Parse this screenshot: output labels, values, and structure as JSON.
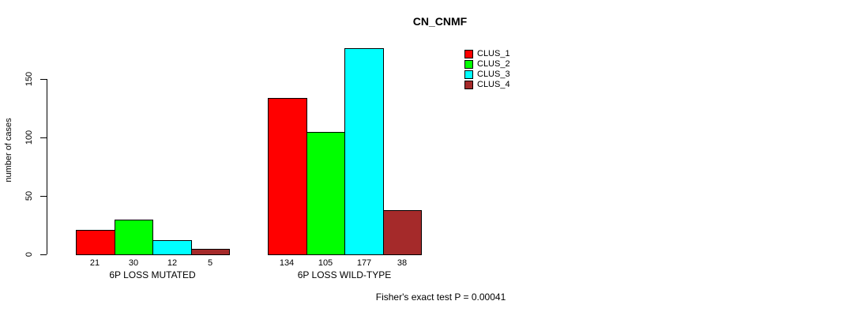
{
  "chart_data": {
    "type": "bar",
    "title": "CN_CNMF",
    "ylabel": "number of cases",
    "xlabel": "",
    "categories": [
      "6P LOSS MUTATED",
      "6P LOSS WILD-TYPE"
    ],
    "series": [
      {
        "name": "CLUS_1",
        "color": "#FF0000",
        "values": [
          21,
          134
        ]
      },
      {
        "name": "CLUS_2",
        "color": "#00FF00",
        "values": [
          30,
          105
        ]
      },
      {
        "name": "CLUS_3",
        "color": "#00FFFF",
        "values": [
          12,
          177
        ]
      },
      {
        "name": "CLUS_4",
        "color": "#A52A2A",
        "values": [
          5,
          38
        ]
      }
    ],
    "yticks": [
      0,
      50,
      100,
      150
    ],
    "ylim": [
      0,
      180
    ],
    "grid": false,
    "legend_position": "top-right",
    "bar_value_labels_shown": true,
    "annotation": "Fisher's exact test P = 0.00041"
  }
}
